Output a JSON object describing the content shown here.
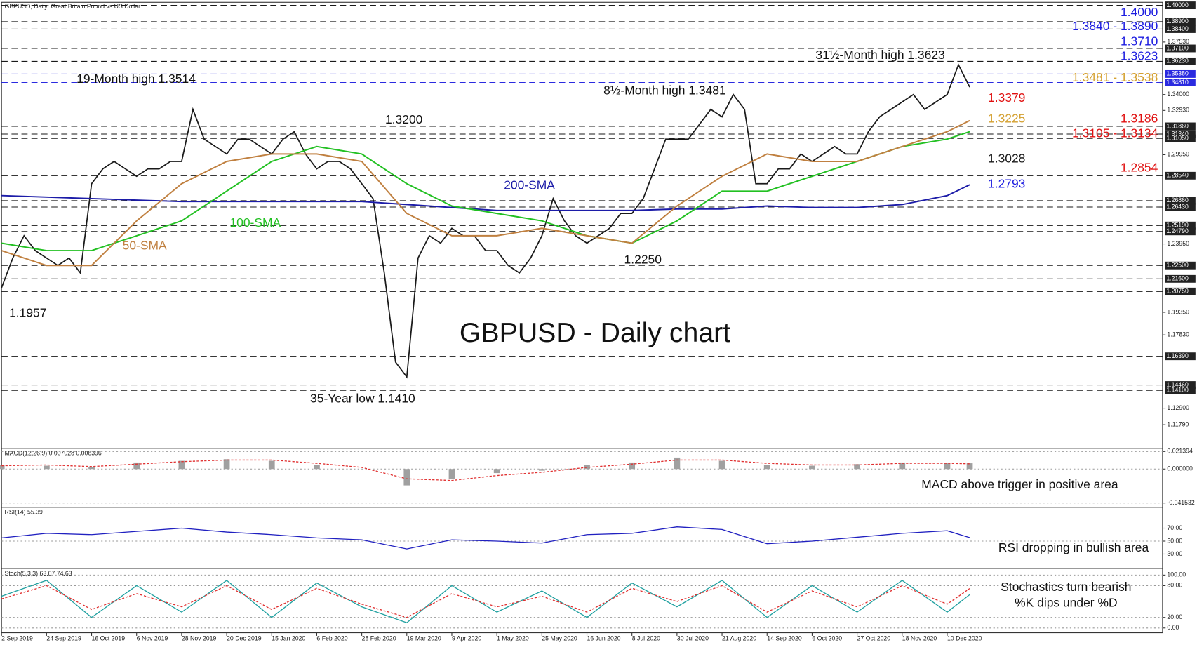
{
  "chart_data": [
    {
      "type": "line",
      "title": "GBPUSD, Daily:  Great Britain Pound vs US Dollar",
      "categories": [
        "2 Sep 2019",
        null,
        null,
        null,
        "24 Sep 2019",
        null,
        null,
        null,
        "16 Oct 2019",
        null,
        null,
        null,
        "6 Nov 2019",
        null,
        null,
        null,
        "28 Nov 2019",
        null,
        null,
        null,
        "20 Dec 2019",
        null,
        null,
        null,
        "15 Jan 2020",
        null,
        null,
        null,
        "6 Feb 2020",
        null,
        null,
        null,
        "28 Feb 2020",
        null,
        null,
        null,
        "19 Mar 2020",
        null,
        null,
        null,
        "9 Apr 2020",
        null,
        null,
        null,
        "1 May 2020",
        null,
        null,
        null,
        "25 May 2020",
        null,
        null,
        null,
        "16 Jun 2020",
        null,
        null,
        null,
        "8 Jul 2020",
        null,
        null,
        null,
        "30 Jul 2020",
        null,
        null,
        null,
        "21 Aug 2020",
        null,
        null,
        null,
        "14 Sep 2020",
        null,
        null,
        null,
        "6 Oct 2020",
        null,
        null,
        null,
        "27 Oct 2020",
        null,
        null,
        null,
        "18 Nov 2020",
        null,
        null,
        null,
        "10 Dec 2020",
        null,
        null
      ],
      "series": [
        {
          "color": "#1a1a1a",
          "values": [
            1.21,
            1.23,
            1.245,
            1.235,
            1.23,
            1.225,
            1.23,
            1.22,
            1.28,
            1.29,
            1.295,
            1.29,
            1.285,
            1.29,
            1.29,
            1.295,
            1.295,
            1.33,
            1.31,
            1.305,
            1.3,
            1.31,
            1.31,
            1.305,
            1.3,
            1.31,
            1.315,
            1.3,
            1.29,
            1.295,
            1.295,
            1.29,
            1.28,
            1.27,
            1.22,
            1.16,
            1.15,
            1.23,
            1.245,
            1.24,
            1.25,
            1.245,
            1.245,
            1.235,
            1.235,
            1.225,
            1.22,
            1.23,
            1.245,
            1.27,
            1.255,
            1.245,
            1.24,
            1.245,
            1.25,
            1.26,
            1.26,
            1.27,
            1.29,
            1.31,
            1.31,
            1.31,
            1.32,
            1.33,
            1.325,
            1.34,
            1.33,
            1.28,
            1.28,
            1.29,
            1.29,
            1.3,
            1.295,
            1.3,
            1.305,
            1.3,
            1.3,
            1.315,
            1.325,
            1.33,
            1.335,
            1.34,
            1.33,
            1.335,
            1.34,
            1.36,
            1.345
          ]
        },
        {
          "name": "200-SMA",
          "color": "#1c1ca8",
          "x": [
            0,
            4,
            8,
            12,
            16,
            20,
            24,
            28,
            32,
            36,
            40,
            44,
            48,
            52,
            56,
            60,
            64,
            68,
            72,
            76,
            80,
            84,
            86
          ],
          "values": [
            1.272,
            1.271,
            1.27,
            1.269,
            1.268,
            1.268,
            1.268,
            1.268,
            1.268,
            1.266,
            1.264,
            1.262,
            1.262,
            1.262,
            1.262,
            1.263,
            1.263,
            1.265,
            1.264,
            1.264,
            1.266,
            1.272,
            1.2793
          ]
        },
        {
          "name": "100-SMA",
          "color": "#22c022",
          "x": [
            0,
            4,
            8,
            12,
            16,
            20,
            24,
            28,
            32,
            36,
            40,
            44,
            48,
            52,
            56,
            60,
            64,
            68,
            72,
            76,
            80,
            84,
            86
          ],
          "values": [
            1.24,
            1.235,
            1.235,
            1.245,
            1.255,
            1.275,
            1.295,
            1.305,
            1.3,
            1.28,
            1.265,
            1.26,
            1.255,
            1.245,
            1.24,
            1.255,
            1.275,
            1.275,
            1.285,
            1.295,
            1.305,
            1.31,
            1.315
          ]
        },
        {
          "name": "50-SMA",
          "color": "#c08040",
          "x": [
            0,
            4,
            8,
            12,
            16,
            20,
            24,
            28,
            32,
            36,
            40,
            44,
            48,
            52,
            56,
            60,
            64,
            68,
            72,
            76,
            80,
            84,
            86
          ],
          "values": [
            1.235,
            1.225,
            1.225,
            1.255,
            1.28,
            1.295,
            1.3,
            1.3,
            1.295,
            1.26,
            1.245,
            1.245,
            1.25,
            1.245,
            1.24,
            1.265,
            1.285,
            1.3,
            1.295,
            1.295,
            1.305,
            1.315,
            1.3225
          ]
        }
      ],
      "ylim": [
        1.1025,
        1.401
      ],
      "yticks": [
        {
          "value": 1.3753,
          "label": "1.37530"
        },
        {
          "value": 1.34,
          "label": "1.34000"
        },
        {
          "value": 1.3293,
          "label": "1.32930"
        },
        {
          "value": 1.2995,
          "label": "1.29950"
        },
        {
          "value": 1.2395,
          "label": "1.23950"
        },
        {
          "value": 1.1935,
          "label": "1.19350"
        },
        {
          "value": 1.1783,
          "label": "1.17830"
        },
        {
          "value": 1.129,
          "label": "1.12900"
        },
        {
          "value": 1.1179,
          "label": "1.11790"
        }
      ],
      "levels": [
        {
          "value": 1.4,
          "label": "1.40000",
          "color": "#1a1a1a"
        },
        {
          "value": 1.389,
          "label": "1.38900",
          "color": "#1a1a1a"
        },
        {
          "value": 1.384,
          "label": "1.38400",
          "color": "#1a1a1a"
        },
        {
          "value": 1.371,
          "label": "1.37100",
          "color": "#1a1a1a"
        },
        {
          "value": 1.3623,
          "label": "1.36230",
          "color": "#1a1a1a"
        },
        {
          "value": 1.3538,
          "label": "1.35380",
          "color": "#2a2ae0"
        },
        {
          "value": 1.3481,
          "label": "1.34810",
          "color": "#2a2ae0"
        },
        {
          "value": 1.3186,
          "label": "1.31860",
          "color": "#1a1a1a"
        },
        {
          "value": 1.3134,
          "label": "1.31340",
          "color": "#1a1a1a"
        },
        {
          "value": 1.3105,
          "label": "1.31050",
          "color": "#1a1a1a"
        },
        {
          "value": 1.2854,
          "label": "1.28540",
          "color": "#1a1a1a"
        },
        {
          "value": 1.2686,
          "label": "1.26860",
          "color": "#1a1a1a"
        },
        {
          "value": 1.2643,
          "label": "1.26430",
          "color": "#1a1a1a"
        },
        {
          "value": 1.2519,
          "label": "1.25190",
          "color": "#1a1a1a"
        },
        {
          "value": 1.2479,
          "label": "1.24790",
          "color": "#1a1a1a"
        },
        {
          "value": 1.225,
          "label": "1.22500",
          "color": "#1a1a1a"
        },
        {
          "value": 1.216,
          "label": "1.21600",
          "color": "#1a1a1a"
        },
        {
          "value": 1.2075,
          "label": "1.20750",
          "color": "#1a1a1a"
        },
        {
          "value": 1.1639,
          "label": "1.16390",
          "color": "#1a1a1a"
        },
        {
          "value": 1.1446,
          "label": "1.14460",
          "color": "#1a1a1a"
        },
        {
          "value": 1.141,
          "label": "1.14100",
          "color": "#1a1a1a"
        }
      ],
      "annotations": [
        "19-Month high 1.3514",
        "31½-Month high 1.3623",
        "8½-Month high 1.3481",
        "1.3200",
        "1.2250",
        "1.1957",
        "35-Year low 1.1410",
        "GBPUSD - Daily chart"
      ],
      "price_labels": [
        {
          "label": "1.4000",
          "color": "#1c1ce0"
        },
        {
          "label": "1.3840 - 1.3890",
          "color": "#1c1ce0"
        },
        {
          "label": "1.3710",
          "color": "#1c1ce0"
        },
        {
          "label": "1.3623",
          "color": "#1c1ce0"
        },
        {
          "label": "1.3481 - 1.3538",
          "color": "#d4a030"
        },
        {
          "label": "1.3379",
          "color": "#e01010"
        },
        {
          "label": "1.3225",
          "color": "#d4a030"
        },
        {
          "label": "1.3186",
          "color": "#e01010"
        },
        {
          "label": "1.3105 - 1.3134",
          "color": "#e01010"
        },
        {
          "label": "1.3028",
          "color": "#1a1a1a"
        },
        {
          "label": "1.2854",
          "color": "#e01010"
        },
        {
          "label": "1.2793",
          "color": "#1c1ce0"
        }
      ]
    },
    {
      "type": "bar",
      "title": "MACD(12,26,9) 0.007028 0.006396",
      "note": [
        "MACD above trigger in positive area"
      ],
      "x": [
        0,
        4,
        8,
        12,
        16,
        20,
        24,
        28,
        32,
        36,
        40,
        44,
        48,
        52,
        56,
        60,
        64,
        68,
        72,
        76,
        80,
        84,
        86
      ],
      "series": [
        {
          "color": "#a0a0a0",
          "values": [
            0.005,
            0.004,
            0.002,
            0.008,
            0.01,
            0.012,
            0.01,
            0.005,
            0.0,
            -0.02,
            -0.012,
            -0.005,
            -0.002,
            0.005,
            0.008,
            0.014,
            0.01,
            0.005,
            0.004,
            0.006,
            0.008,
            0.007,
            0.007028
          ]
        },
        {
          "color": "#e03030",
          "values": [
            0.004,
            0.005,
            0.003,
            0.006,
            0.009,
            0.011,
            0.011,
            0.007,
            0.002,
            -0.012,
            -0.014,
            -0.008,
            -0.004,
            0.002,
            0.006,
            0.011,
            0.011,
            0.007,
            0.005,
            0.005,
            0.007,
            0.007,
            0.006396
          ]
        }
      ],
      "ylim": [
        -0.0458,
        0.0243
      ],
      "yticks": [
        {
          "value": 0.021394,
          "label": "0.021394"
        },
        {
          "value": 0,
          "label": "0.000000"
        },
        {
          "value": -0.041532,
          "label": "-0.041532"
        }
      ]
    },
    {
      "type": "line",
      "title": "RSI(14) 55.39",
      "note": [
        "RSI dropping in bullish area"
      ],
      "x": [
        0,
        4,
        8,
        12,
        16,
        20,
        24,
        28,
        32,
        36,
        40,
        44,
        48,
        52,
        56,
        60,
        64,
        68,
        72,
        76,
        80,
        84,
        86
      ],
      "series": [
        {
          "color": "#2020c0",
          "values": [
            55,
            62,
            60,
            65,
            70,
            64,
            60,
            55,
            52,
            38,
            52,
            50,
            47,
            60,
            62,
            72,
            68,
            46,
            50,
            56,
            62,
            66,
            55.39
          ]
        }
      ],
      "ylim": [
        9,
        101
      ],
      "yticks": [
        {
          "value": 70,
          "label": "70.00"
        },
        {
          "value": 50,
          "label": "50.00"
        },
        {
          "value": 30,
          "label": "30.00"
        }
      ]
    },
    {
      "type": "line",
      "title": "Stoch(5,3,3) 63.07 74.63",
      "note": [
        "Stochastics turn bearish",
        "%K dips under %D"
      ],
      "x": [
        0,
        4,
        8,
        12,
        16,
        20,
        24,
        28,
        32,
        36,
        40,
        44,
        48,
        52,
        56,
        60,
        64,
        68,
        72,
        76,
        80,
        84,
        86
      ],
      "series": [
        {
          "color": "#20a0a0",
          "values": [
            60,
            90,
            20,
            80,
            30,
            90,
            20,
            85,
            40,
            10,
            80,
            30,
            70,
            20,
            85,
            40,
            90,
            20,
            80,
            30,
            90,
            30,
            63.07
          ]
        },
        {
          "color": "#e03030",
          "values": [
            55,
            80,
            35,
            65,
            40,
            80,
            35,
            75,
            45,
            20,
            65,
            40,
            60,
            30,
            75,
            50,
            80,
            30,
            70,
            40,
            80,
            45,
            74.63
          ]
        }
      ],
      "ylim": [
        -9,
        111
      ],
      "yticks": [
        {
          "value": 100,
          "label": "100.00"
        },
        {
          "value": 80,
          "label": "80.00"
        },
        {
          "value": 20,
          "label": "20.00"
        },
        {
          "value": 0,
          "label": "0.00"
        }
      ]
    }
  ]
}
